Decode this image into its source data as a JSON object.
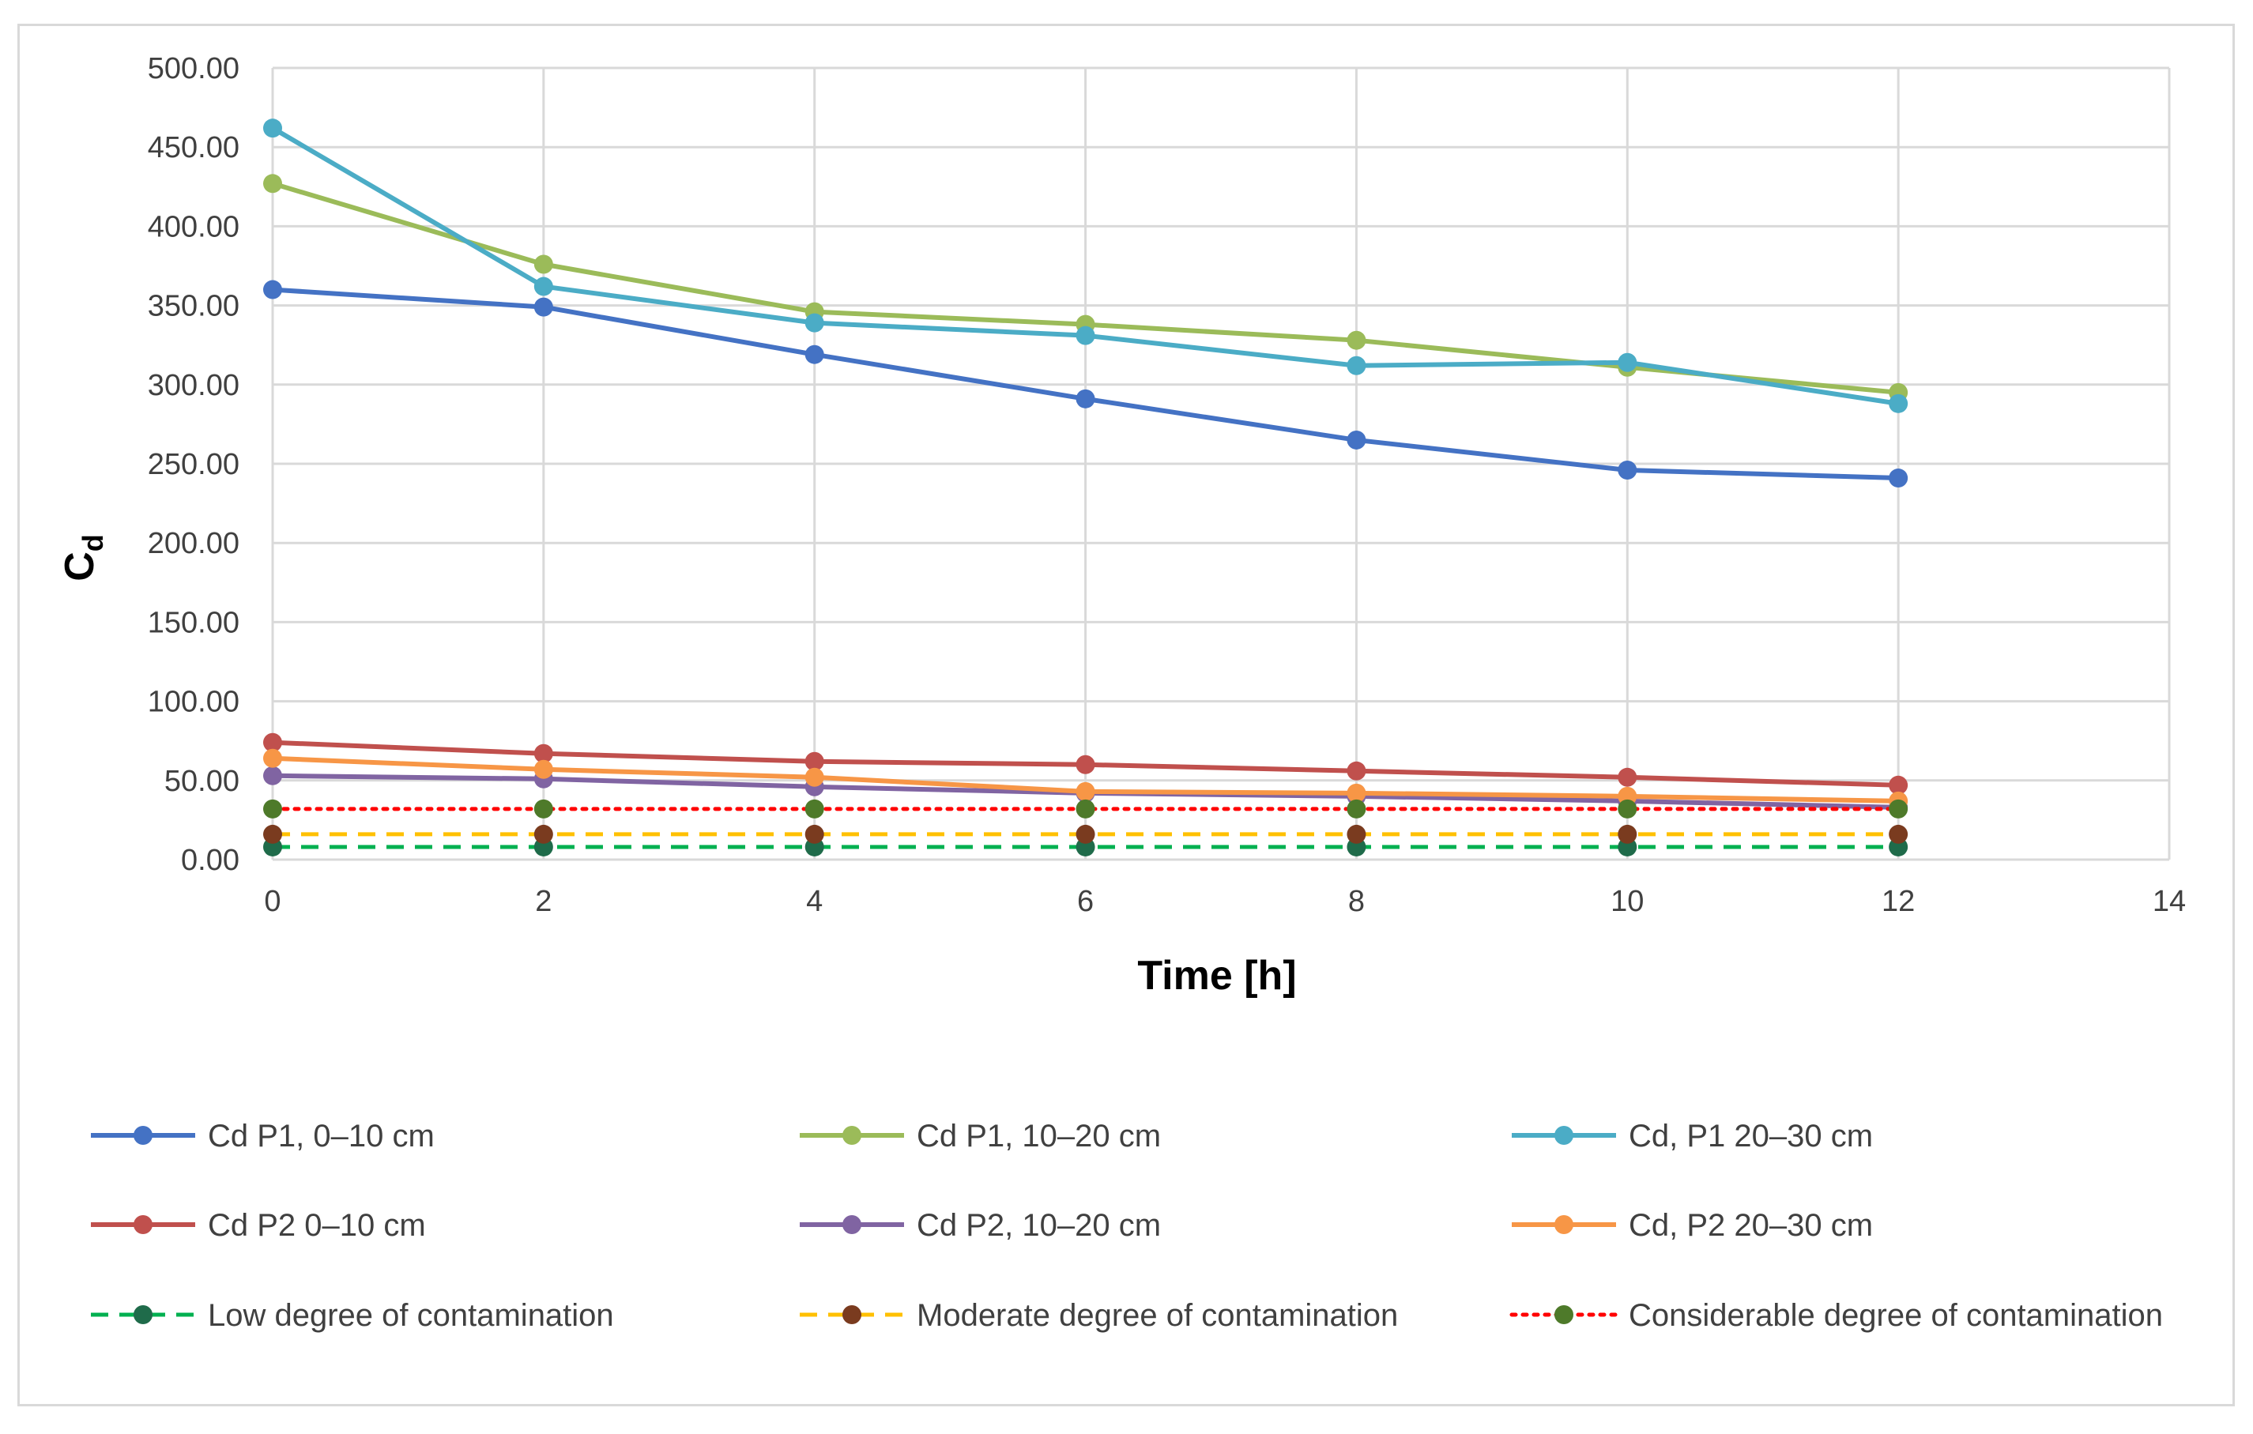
{
  "chart_data": {
    "type": "line",
    "title": "",
    "xlabel": "Time [h]",
    "ylabel_main": "C",
    "ylabel_sub": "d",
    "xlim": [
      0,
      14
    ],
    "ylim": [
      0,
      500
    ],
    "x_ticks": [
      0,
      2,
      4,
      6,
      8,
      10,
      12,
      14
    ],
    "y_ticks": [
      0,
      50,
      100,
      150,
      200,
      250,
      300,
      350,
      400,
      450,
      500
    ],
    "y_tick_labels": [
      "0.00",
      "50.00",
      "100.00",
      "150.00",
      "200.00",
      "250.00",
      "300.00",
      "350.00",
      "400.00",
      "450.00",
      "500.00"
    ],
    "x_tick_labels": [
      "0",
      "2",
      "4",
      "6",
      "8",
      "10",
      "12",
      "14"
    ],
    "grid": true,
    "legend_position": "bottom",
    "x": [
      0,
      2,
      4,
      6,
      8,
      10,
      12
    ],
    "series": [
      {
        "name": "Cd P1, 0–10 cm",
        "color": "#4472c4",
        "dash": "solid",
        "marker_color": "#4472c4",
        "values": [
          360,
          349,
          319,
          291,
          265,
          246,
          241
        ]
      },
      {
        "name": "Cd P1, 10–20 cm",
        "color": "#9bbb59",
        "dash": "solid",
        "marker_color": "#9bbb59",
        "values": [
          427,
          376,
          346,
          338,
          328,
          311,
          295
        ]
      },
      {
        "name": "Cd, P1 20–30 cm",
        "color": "#4bacc6",
        "dash": "solid",
        "marker_color": "#4bacc6",
        "values": [
          462,
          362,
          339,
          331,
          312,
          314,
          288
        ]
      },
      {
        "name": "Cd P2 0–10 cm",
        "color": "#c0504d",
        "dash": "solid",
        "marker_color": "#c0504d",
        "values": [
          74,
          67,
          62,
          60,
          56,
          52,
          47
        ]
      },
      {
        "name": "Cd P2, 10–20 cm",
        "color": "#8064a2",
        "dash": "solid",
        "marker_color": "#8064a2",
        "values": [
          53,
          51,
          46,
          42,
          40,
          37,
          33
        ]
      },
      {
        "name": "Cd, P2 20–30 cm",
        "color": "#f79646",
        "dash": "solid",
        "marker_color": "#f79646",
        "values": [
          64,
          57,
          52,
          43,
          42,
          40,
          37
        ]
      },
      {
        "name": "Low degree of contamination",
        "color": "#00b050",
        "dash": "dashed",
        "marker_color": "#1f6b4a",
        "values": [
          8,
          8,
          8,
          8,
          8,
          8,
          8
        ]
      },
      {
        "name": "Moderate degree of contamination",
        "color": "#ffc000",
        "dash": "dashed",
        "marker_color": "#7a3b1f",
        "values": [
          16,
          16,
          16,
          16,
          16,
          16,
          16
        ]
      },
      {
        "name": "Considerable degree of contamination",
        "color": "#ff0000",
        "dash": "dotted",
        "marker_color": "#4e7a2a",
        "values": [
          32,
          32,
          32,
          32,
          32,
          32,
          32
        ]
      }
    ]
  }
}
